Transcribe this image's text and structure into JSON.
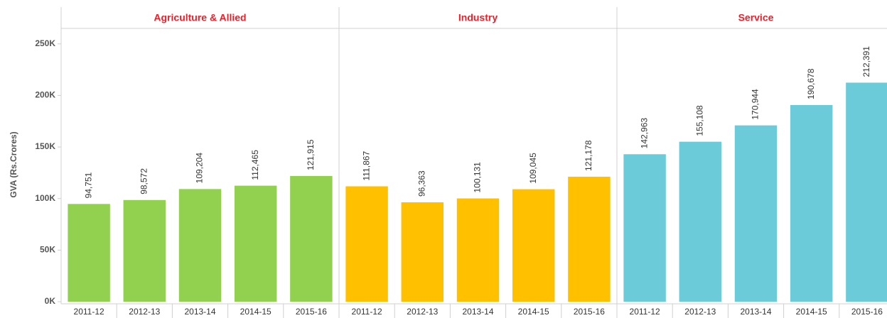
{
  "chart_data": {
    "type": "bar",
    "ylabel": "GVA (Rs.Crores)",
    "ylim": [
      0,
      265000
    ],
    "yticks": [
      {
        "value": 0,
        "label": "0K"
      },
      {
        "value": 50000,
        "label": "50K"
      },
      {
        "value": 100000,
        "label": "100K"
      },
      {
        "value": 150000,
        "label": "150K"
      },
      {
        "value": 200000,
        "label": "200K"
      },
      {
        "value": 250000,
        "label": "250K"
      }
    ],
    "panels": [
      {
        "title": "Agriculture & Allied",
        "color": "#92d050",
        "categories": [
          "2011-12",
          "2012-13",
          "2013-14",
          "2014-15",
          "2015-16"
        ],
        "values": [
          94751,
          98572,
          109204,
          112465,
          121915
        ],
        "value_labels": [
          "94,751",
          "98,572",
          "109,204",
          "112,465",
          "121,915"
        ]
      },
      {
        "title": "Industry",
        "color": "#ffc000",
        "categories": [
          "2011-12",
          "2012-13",
          "2013-14",
          "2014-15",
          "2015-16"
        ],
        "values": [
          111867,
          96363,
          100131,
          109045,
          121178
        ],
        "value_labels": [
          "111,867",
          "96,363",
          "100,131",
          "109,045",
          "121,178"
        ]
      },
      {
        "title": "Service",
        "color": "#6ccbd8",
        "categories": [
          "2011-12",
          "2012-13",
          "2013-14",
          "2014-15",
          "2015-16"
        ],
        "values": [
          142963,
          155108,
          170944,
          190678,
          212391
        ],
        "value_labels": [
          "142,963",
          "155,108",
          "170,944",
          "190,678",
          "212,391"
        ]
      }
    ]
  }
}
